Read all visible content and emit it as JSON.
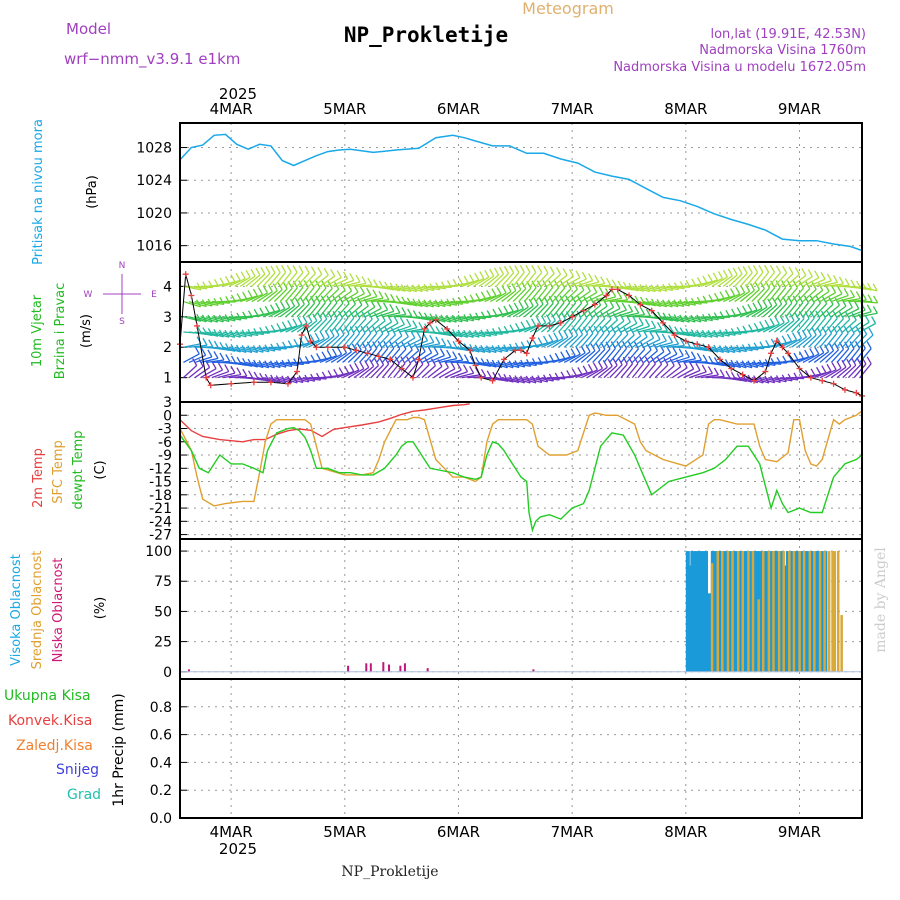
{
  "header": {
    "model_label": "Model",
    "model_name": "wrf−nmm_v3.9.1  e1km",
    "title": "Meteogram",
    "station": "NP_Prokletije",
    "coords": "lon,lat (19.91E, 42.53N)",
    "elevation": "Nadmorska Visina 1760m",
    "model_elevation": "Nadmorska Visina u modelu 1672.05m"
  },
  "footer": {
    "station": "NP_Prokletije",
    "credit": "made by Angel"
  },
  "colors": {
    "pressure": "#1aa8e8",
    "wind_label": "#22bb22",
    "temp2m": "#e84040",
    "sfc": "#e0a030",
    "dewpt": "#22cc22",
    "cloud_high": "#1a9ad8",
    "cloud_mid": "#d8a838",
    "cloud_low": "#c01878",
    "precip_total": "#22cc22",
    "precip_conv": "#e84040",
    "precip_frozen": "#f08030",
    "snow": "#4040e0",
    "graupel": "#20c0b0",
    "compass": "#a040c0"
  },
  "panels": {
    "pressure": {
      "label": "Pritisak na nivou mora",
      "unit": "(hPa)"
    },
    "wind": {
      "label1": "10m Vjetar",
      "label2": "Brzina i Pravac",
      "unit": "(m/s)",
      "compass": [
        "N",
        "W",
        "E",
        "S"
      ]
    },
    "temp": {
      "label1": "2m Temp",
      "label2": "SFC Temp",
      "label3": "dewpt Temp",
      "unit": "(C)"
    },
    "cloud": {
      "label1": "Visoka Oblacnost",
      "label2": "Srednja Oblacnost",
      "label3": "Niska Oblacnost",
      "unit": "(%)"
    },
    "precip": {
      "labels": [
        "Ukupna  Kisa",
        "Konvek.Kisa",
        "Zaledj.Kisa",
        "Snijeg",
        "Grad"
      ],
      "unit": "1hr Precip (mm)"
    }
  },
  "chart_data": {
    "type": "line",
    "time_axis": {
      "year": "2025",
      "labels": [
        "4MAR",
        "5MAR",
        "6MAR",
        "7MAR",
        "8MAR",
        "9MAR"
      ],
      "range_days": [
        3.55,
        9.55
      ]
    },
    "pressure": {
      "ylim": [
        1014,
        1031
      ],
      "yticks": [
        1016,
        1020,
        1024,
        1028
      ],
      "x": [
        3.55,
        3.65,
        3.75,
        3.85,
        3.95,
        4.05,
        4.15,
        4.25,
        4.35,
        4.45,
        4.55,
        4.65,
        4.75,
        4.85,
        4.95,
        5.05,
        5.25,
        5.45,
        5.65,
        5.8,
        5.95,
        6.05,
        6.15,
        6.3,
        6.45,
        6.6,
        6.75,
        6.9,
        7.05,
        7.2,
        7.35,
        7.5,
        7.65,
        7.8,
        7.95,
        8.1,
        8.25,
        8.4,
        8.55,
        8.7,
        8.85,
        9.0,
        9.15,
        9.3,
        9.45,
        9.55
      ],
      "y": [
        1026.5,
        1028,
        1028.3,
        1029.5,
        1029.6,
        1028.4,
        1027.8,
        1028.4,
        1028.2,
        1026.4,
        1025.8,
        1026.4,
        1027,
        1027.5,
        1027.7,
        1027.8,
        1027.4,
        1027.7,
        1027.9,
        1029.2,
        1029.5,
        1029.2,
        1028.8,
        1028.2,
        1028.2,
        1027.3,
        1027.3,
        1026.6,
        1026.1,
        1025,
        1024.5,
        1024.1,
        1023,
        1021.9,
        1021.5,
        1020.8,
        1019.9,
        1019.2,
        1018.6,
        1017.9,
        1016.8,
        1016.6,
        1016.6,
        1016.2,
        1015.9,
        1015.4
      ]
    },
    "wind": {
      "ylim": [
        0.2,
        4.8
      ],
      "yticks": [
        1,
        2,
        3,
        4
      ],
      "x": [
        3.55,
        3.6,
        3.65,
        3.7,
        3.78,
        3.82,
        4.0,
        4.2,
        4.35,
        4.5,
        4.58,
        4.62,
        4.66,
        4.7,
        4.75,
        4.85,
        5.0,
        5.1,
        5.2,
        5.3,
        5.4,
        5.5,
        5.6,
        5.65,
        5.7,
        5.75,
        5.8,
        5.9,
        6.0,
        6.1,
        6.15,
        6.2,
        6.3,
        6.4,
        6.5,
        6.55,
        6.6,
        6.65,
        6.7,
        6.8,
        6.9,
        7.0,
        7.1,
        7.2,
        7.3,
        7.35,
        7.4,
        7.5,
        7.6,
        7.7,
        7.8,
        7.9,
        8.0,
        8.1,
        8.2,
        8.3,
        8.4,
        8.5,
        8.6,
        8.7,
        8.75,
        8.8,
        8.85,
        8.9,
        9.0,
        9.1,
        9.2,
        9.3,
        9.4,
        9.5,
        9.55
      ],
      "y": [
        2.1,
        4.4,
        3.7,
        2.7,
        1.0,
        0.75,
        0.8,
        0.85,
        0.85,
        0.8,
        1.2,
        2.4,
        2.7,
        2.2,
        2.0,
        2.0,
        2.0,
        1.9,
        1.8,
        1.7,
        1.6,
        1.3,
        1.0,
        1.6,
        2.6,
        2.8,
        2.9,
        2.6,
        2.2,
        1.9,
        1.4,
        1.0,
        0.9,
        1.6,
        1.9,
        1.9,
        1.8,
        2.3,
        2.7,
        2.7,
        2.8,
        3.0,
        3.2,
        3.4,
        3.7,
        3.9,
        3.9,
        3.7,
        3.4,
        3.2,
        2.8,
        2.4,
        2.2,
        2.1,
        2.0,
        1.6,
        1.3,
        1.1,
        0.9,
        1.2,
        1.8,
        2.2,
        2.0,
        1.8,
        1.3,
        1.0,
        0.9,
        0.8,
        0.6,
        0.5,
        0.4
      ]
    },
    "temperature": {
      "ylim": [
        -28,
        3
      ],
      "yticks": [
        -27,
        -24,
        -21,
        -18,
        -15,
        -12,
        -9,
        -6,
        -3,
        0,
        3
      ],
      "series": [
        {
          "name": "2m Temp",
          "x": [
            3.55,
            3.65,
            3.75,
            3.9,
            4.1,
            4.2,
            4.3,
            4.4,
            4.5,
            4.6,
            4.7,
            4.8,
            4.9,
            5.0,
            5.15,
            5.3,
            5.4,
            5.5,
            5.6,
            5.7,
            5.8,
            5.95,
            6.05,
            6.1
          ],
          "y": [
            -1,
            -3.5,
            -4.8,
            -5.5,
            -6,
            -5.5,
            -5.5,
            -4.3,
            -3.5,
            -3.1,
            -3.4,
            -4.8,
            -3.2,
            -2.8,
            -2.2,
            -1.5,
            -0.7,
            0.2,
            0.9,
            1.2,
            1.6,
            2.2,
            2.4,
            2.6
          ]
        },
        {
          "name": "SFC Temp",
          "x": [
            3.55,
            3.65,
            3.7,
            3.75,
            3.85,
            3.95,
            4.1,
            4.2,
            4.25,
            4.3,
            4.35,
            4.4,
            4.5,
            4.6,
            4.65,
            4.7,
            4.75,
            4.8,
            5.0,
            5.15,
            5.25,
            5.3,
            5.35,
            5.45,
            5.55,
            5.6,
            5.65,
            5.7,
            5.8,
            5.95,
            6.05,
            6.15,
            6.2,
            6.25,
            6.3,
            6.35,
            6.45,
            6.55,
            6.6,
            6.65,
            6.7,
            6.8,
            6.95,
            7.05,
            7.1,
            7.15,
            7.2,
            7.3,
            7.4,
            7.55,
            7.6,
            7.65,
            7.8,
            8.0,
            8.15,
            8.2,
            8.25,
            8.3,
            8.45,
            8.6,
            8.65,
            8.7,
            8.8,
            8.9,
            8.95,
            9.0,
            9.05,
            9.1,
            9.15,
            9.2,
            9.3,
            9.35,
            9.4,
            9.5,
            9.55
          ],
          "y": [
            -3,
            -8,
            -14,
            -19,
            -20.5,
            -20,
            -19.5,
            -19.5,
            -13,
            -6,
            -2,
            -1,
            -1,
            -1,
            -1,
            -2,
            -7,
            -12,
            -13.5,
            -13.5,
            -13,
            -10,
            -6,
            -1,
            -1,
            -0.5,
            -0.5,
            -1,
            -10,
            -14,
            -14,
            -15,
            -14,
            -6,
            -2,
            -1,
            -1,
            -1,
            -1,
            -2,
            -7,
            -9,
            -9,
            -8,
            -4,
            0,
            0.5,
            0,
            0,
            -2,
            -6,
            -8,
            -10,
            -11.5,
            -9,
            -2,
            -1,
            -1,
            -2,
            -2,
            -7,
            -10,
            -10.5,
            -8.5,
            -1,
            -1,
            -8,
            -11,
            -11.5,
            -10,
            -1,
            -2,
            -1,
            0,
            1
          ]
        },
        {
          "name": "dewpt Temp",
          "x": [
            3.55,
            3.65,
            3.72,
            3.8,
            3.9,
            4.0,
            4.1,
            4.2,
            4.28,
            4.32,
            4.4,
            4.5,
            4.55,
            4.6,
            4.65,
            4.7,
            4.75,
            4.85,
            4.95,
            5.05,
            5.15,
            5.25,
            5.35,
            5.45,
            5.5,
            5.55,
            5.6,
            5.65,
            5.75,
            5.85,
            5.95,
            6.05,
            6.15,
            6.2,
            6.25,
            6.3,
            6.35,
            6.4,
            6.45,
            6.5,
            6.55,
            6.6,
            6.62,
            6.65,
            6.68,
            6.72,
            6.8,
            6.9,
            7.0,
            7.1,
            7.15,
            7.2,
            7.25,
            7.35,
            7.45,
            7.55,
            7.6,
            7.7,
            7.85,
            8.0,
            8.15,
            8.25,
            8.35,
            8.45,
            8.55,
            8.65,
            8.7,
            8.75,
            8.8,
            8.85,
            8.9,
            9.0,
            9.1,
            9.2,
            9.3,
            9.4,
            9.5,
            9.55
          ],
          "y": [
            -4.5,
            -8,
            -12,
            -13,
            -9,
            -11,
            -11,
            -12,
            -13,
            -8,
            -4,
            -3,
            -2.8,
            -3.5,
            -5,
            -8,
            -12,
            -12,
            -13,
            -13,
            -13.5,
            -13.5,
            -12,
            -9,
            -7,
            -6,
            -6,
            -8,
            -12,
            -12.5,
            -13,
            -14,
            -14.5,
            -14,
            -9,
            -6,
            -6.5,
            -8,
            -10,
            -12,
            -14,
            -15,
            -22,
            -26,
            -24,
            -23,
            -22.5,
            -23.5,
            -21,
            -20,
            -17,
            -12,
            -7,
            -4,
            -4.5,
            -9,
            -12,
            -18,
            -15,
            -14,
            -13,
            -12,
            -10,
            -7,
            -7,
            -11,
            -16,
            -21,
            -17,
            -20,
            -22,
            -21,
            -22,
            -22,
            -14,
            -11,
            -10,
            -9
          ]
        }
      ]
    },
    "cloud": {
      "ylim": [
        -6,
        110
      ],
      "yticks": [
        0,
        25,
        50,
        75,
        100
      ],
      "series": [
        {
          "name": "Niska Oblacnost",
          "x": [
            3.62,
            5.02,
            5.18,
            5.22,
            5.33,
            5.38,
            5.48,
            5.52,
            5.72,
            6.65
          ],
          "y": [
            2,
            5,
            7,
            7,
            8,
            6,
            5,
            7,
            3,
            2
          ]
        },
        {
          "name": "Visoka Oblacnost",
          "x": [
            8.0,
            8.02,
            8.04,
            8.07,
            8.1,
            8.13,
            8.16,
            8.19,
            8.22,
            8.25,
            8.28,
            8.31,
            8.34,
            8.37,
            8.4,
            8.43,
            8.46,
            8.49,
            8.52,
            8.55,
            8.58,
            8.61,
            8.64,
            8.67,
            8.7,
            8.73,
            8.76,
            8.79,
            8.82,
            8.85,
            8.88,
            8.91,
            8.94,
            8.97,
            9.0,
            9.03,
            9.06,
            9.09,
            9.12,
            9.15,
            9.18,
            9.21
          ],
          "y": [
            100,
            88,
            100,
            100,
            100,
            100,
            100,
            65,
            100,
            100,
            100,
            100,
            100,
            100,
            100,
            100,
            100,
            100,
            100,
            100,
            100,
            100,
            100,
            100,
            100,
            100,
            100,
            100,
            100,
            88,
            100,
            100,
            100,
            100,
            100,
            100,
            100,
            100,
            100,
            100,
            100,
            100
          ]
        },
        {
          "name": "Srednja Oblacnost",
          "x": [
            8.22,
            8.27,
            8.31,
            8.36,
            8.4,
            8.45,
            8.49,
            8.54,
            8.58,
            8.63,
            8.67,
            8.72,
            8.76,
            8.81,
            8.85,
            8.9,
            8.94,
            8.99,
            9.03,
            9.08,
            9.12,
            9.17,
            9.21,
            9.25,
            9.28,
            9.3,
            9.33,
            9.36
          ],
          "y": [
            90,
            100,
            100,
            100,
            100,
            100,
            100,
            100,
            100,
            60,
            100,
            100,
            100,
            100,
            100,
            100,
            100,
            100,
            100,
            100,
            100,
            100,
            100,
            100,
            100,
            100,
            100,
            47
          ]
        }
      ]
    },
    "precip": {
      "ylim": [
        0,
        1.0
      ],
      "yticks": [
        0,
        0.2,
        0.4,
        0.6,
        0.8
      ],
      "values": []
    }
  }
}
